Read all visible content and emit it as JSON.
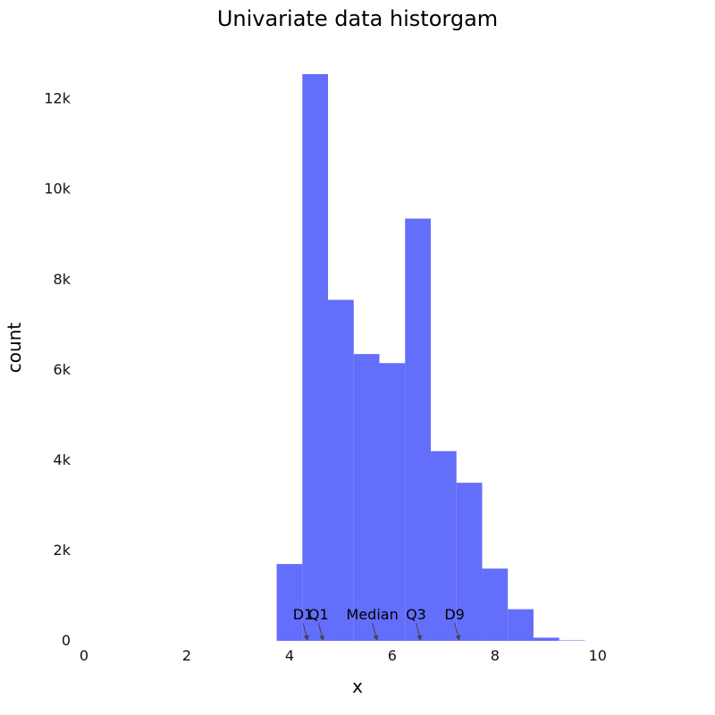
{
  "chart_data": {
    "type": "bar",
    "title": "Univariate data historgam",
    "xlabel": "x",
    "ylabel": "count",
    "xlim": [
      0,
      11.5
    ],
    "ylim": [
      0,
      12600
    ],
    "x_ticks": [
      {
        "value": 0,
        "label": "0"
      },
      {
        "value": 2,
        "label": "2"
      },
      {
        "value": 4,
        "label": "4"
      },
      {
        "value": 6,
        "label": "6"
      },
      {
        "value": 8,
        "label": "8"
      },
      {
        "value": 10,
        "label": "10"
      }
    ],
    "y_ticks": [
      {
        "value": 0,
        "label": "0"
      },
      {
        "value": 2000,
        "label": "2k"
      },
      {
        "value": 4000,
        "label": "4k"
      },
      {
        "value": 6000,
        "label": "6k"
      },
      {
        "value": 8000,
        "label": "8k"
      },
      {
        "value": 10000,
        "label": "10k"
      },
      {
        "value": 12000,
        "label": "12k"
      }
    ],
    "bar_color": "#636efa",
    "bins": [
      {
        "x0": 3.75,
        "x1": 4.25,
        "count": 1700
      },
      {
        "x0": 4.25,
        "x1": 4.75,
        "count": 12550
      },
      {
        "x0": 4.75,
        "x1": 5.25,
        "count": 7550
      },
      {
        "x0": 5.25,
        "x1": 5.75,
        "count": 6350
      },
      {
        "x0": 5.75,
        "x1": 6.25,
        "count": 6150
      },
      {
        "x0": 6.25,
        "x1": 6.75,
        "count": 9350
      },
      {
        "x0": 6.75,
        "x1": 7.25,
        "count": 4200
      },
      {
        "x0": 7.25,
        "x1": 7.75,
        "count": 3500
      },
      {
        "x0": 7.75,
        "x1": 8.25,
        "count": 1600
      },
      {
        "x0": 8.25,
        "x1": 8.75,
        "count": 700
      },
      {
        "x0": 8.75,
        "x1": 9.25,
        "count": 70
      },
      {
        "x0": 9.25,
        "x1": 9.75,
        "count": 10
      }
    ],
    "annotations": [
      {
        "text": "D1",
        "x": 4.35
      },
      {
        "text": "Q1",
        "x": 4.65
      },
      {
        "text": "Median",
        "x": 5.7
      },
      {
        "text": "Q3",
        "x": 6.55
      },
      {
        "text": "D9",
        "x": 7.3
      }
    ]
  }
}
